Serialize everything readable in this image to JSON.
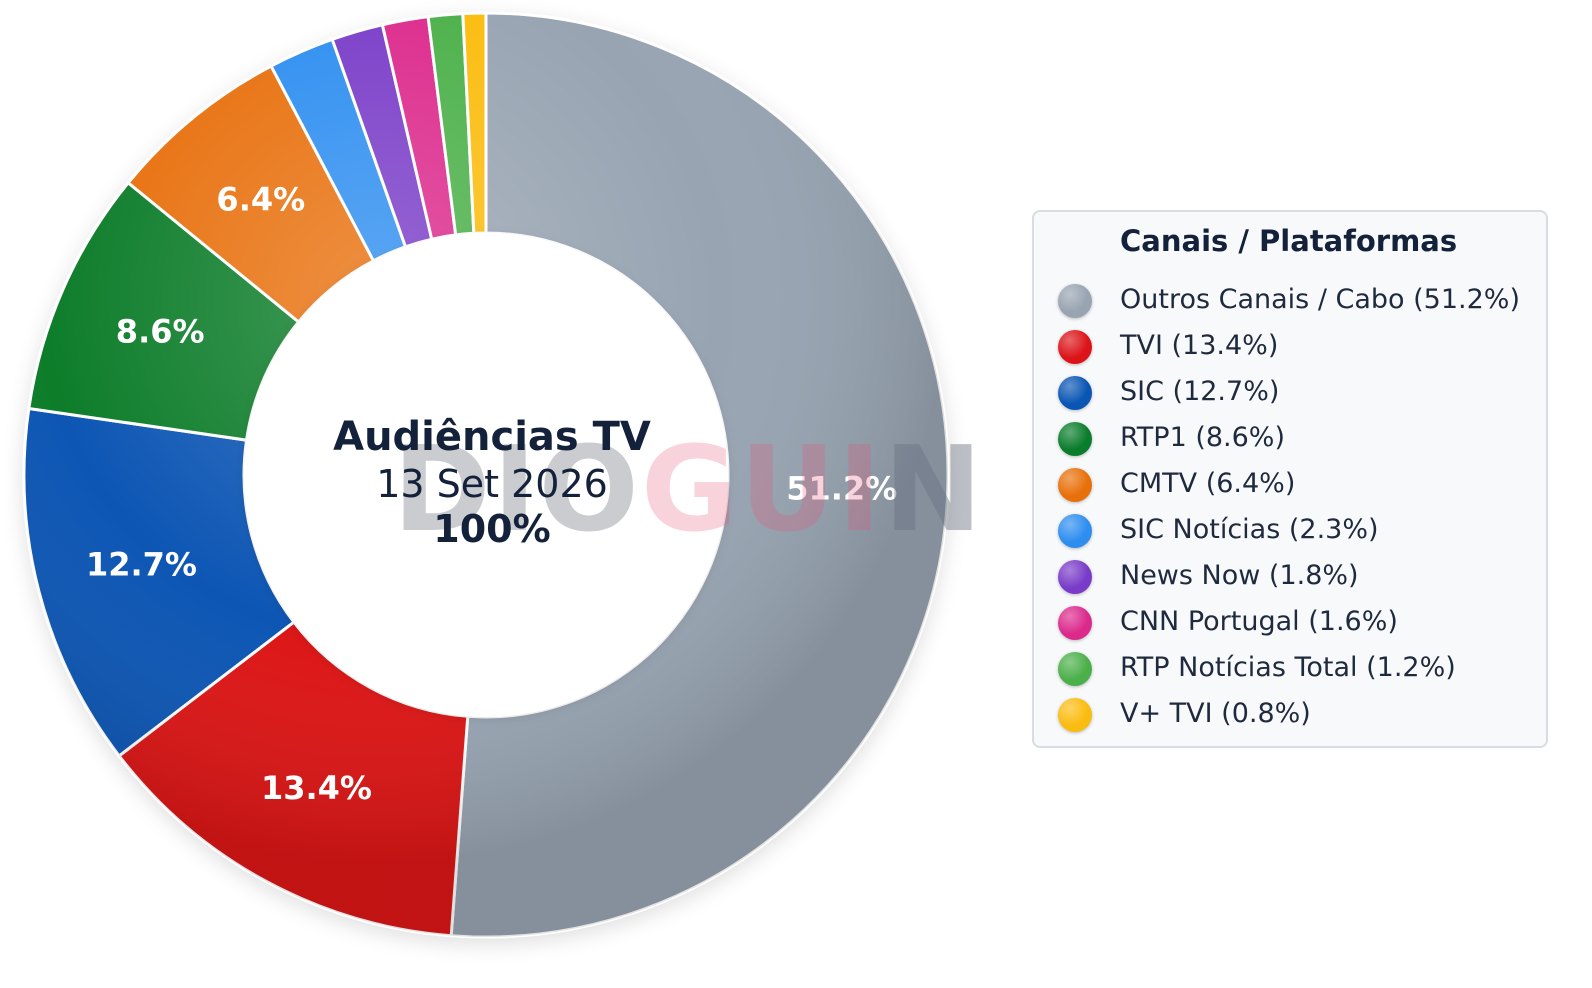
{
  "chart_data": {
    "type": "pie",
    "variant": "donut",
    "center": {
      "title": "Audiências TV",
      "date": "13 Set 2026",
      "total": "100%"
    },
    "legend_title": "Canais / Plataformas",
    "legend_placement": "right",
    "slices": [
      {
        "name": "Outros Canais / Cabo",
        "value": 51.2,
        "label": "51.2%",
        "legend_text": "Outros Canais / Cabo (51.2%)",
        "color": "#98a4b2"
      },
      {
        "name": "TVI",
        "value": 13.4,
        "label": "13.4%",
        "legend_text": "TVI (13.4%)",
        "color": "#dc1419"
      },
      {
        "name": "SIC",
        "value": 12.7,
        "label": "12.7%",
        "legend_text": "SIC (12.7%)",
        "color": "#0a56b4"
      },
      {
        "name": "RTP1",
        "value": 8.6,
        "label": "8.6%",
        "legend_text": "RTP1 (8.6%)",
        "color": "#0a7d2c"
      },
      {
        "name": "CMTV",
        "value": 6.4,
        "label": "6.4%",
        "legend_text": "CMTV (6.4%)",
        "color": "#e8700a"
      },
      {
        "name": "SIC Notícias",
        "value": 2.3,
        "label": "",
        "legend_text": "SIC Notícias (2.3%)",
        "color": "#2e8ef0"
      },
      {
        "name": "News Now",
        "value": 1.8,
        "label": "",
        "legend_text": "News Now (1.8%)",
        "color": "#7a3cc8"
      },
      {
        "name": "CNN Portugal",
        "value": 1.6,
        "label": "",
        "legend_text": "CNN Portugal (1.6%)",
        "color": "#dc2a8c"
      },
      {
        "name": "RTP Notícias Total",
        "value": 1.2,
        "label": "",
        "legend_text": "RTP Notícias Total (1.2%)",
        "color": "#4bb04a"
      },
      {
        "name": "V+ TVI",
        "value": 0.8,
        "label": "",
        "legend_text": "V+ TVI (0.8%)",
        "color": "#fbbc10"
      }
    ]
  },
  "watermark": "DIOGUINHO"
}
